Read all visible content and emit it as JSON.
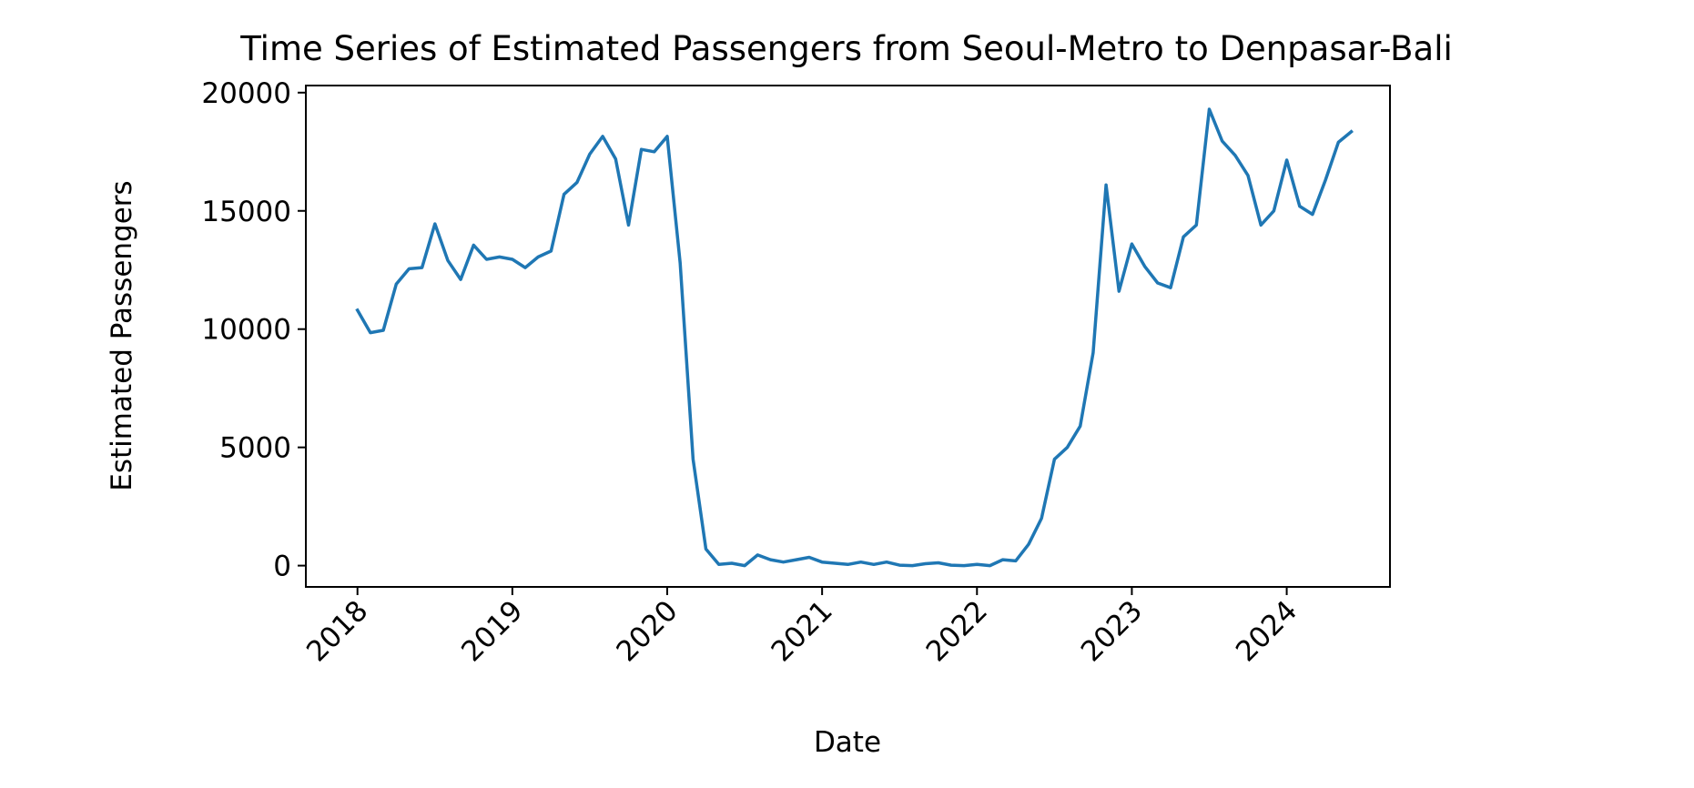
{
  "chart_data": {
    "type": "line",
    "title": "Time Series of Estimated Passengers from Seoul-Metro to Denpasar-Bali",
    "xlabel": "Date",
    "ylabel": "Estimated Passengers",
    "x_ticks": [
      "2018",
      "2019",
      "2020",
      "2021",
      "2022",
      "2023",
      "2024"
    ],
    "y_ticks": [
      "0",
      "5000",
      "10000",
      "15000",
      "20000"
    ],
    "xlim": [
      "2017-09",
      "2024-09"
    ],
    "ylim": [
      -900,
      20300
    ],
    "grid": false,
    "line_color": "#1f77b4",
    "series": [
      {
        "x": [
          "2018-01",
          "2018-02",
          "2018-03",
          "2018-04",
          "2018-05",
          "2018-06",
          "2018-07",
          "2018-08",
          "2018-09",
          "2018-10",
          "2018-11",
          "2018-12",
          "2019-01",
          "2019-02",
          "2019-03",
          "2019-04",
          "2019-05",
          "2019-06",
          "2019-07",
          "2019-08",
          "2019-09",
          "2019-10",
          "2019-11",
          "2019-12",
          "2020-01",
          "2020-02",
          "2020-03",
          "2020-04",
          "2020-05",
          "2020-06",
          "2020-07",
          "2020-08",
          "2020-09",
          "2020-10",
          "2020-11",
          "2020-12",
          "2021-01",
          "2021-02",
          "2021-03",
          "2021-04",
          "2021-05",
          "2021-06",
          "2021-07",
          "2021-08",
          "2021-09",
          "2021-10",
          "2021-11",
          "2021-12",
          "2022-01",
          "2022-02",
          "2022-03",
          "2022-04",
          "2022-05",
          "2022-06",
          "2022-07",
          "2022-08",
          "2022-09",
          "2022-10",
          "2022-11",
          "2022-12",
          "2023-01",
          "2023-02",
          "2023-03",
          "2023-04",
          "2023-05",
          "2023-06",
          "2023-07",
          "2023-08",
          "2023-09",
          "2023-10",
          "2023-11",
          "2023-12",
          "2024-01",
          "2024-02",
          "2024-03",
          "2024-04",
          "2024-05",
          "2024-06"
        ],
        "values": [
          10800,
          9850,
          9950,
          11900,
          12550,
          12600,
          14450,
          12900,
          12100,
          13550,
          12950,
          13050,
          12950,
          12600,
          13050,
          13300,
          15700,
          16200,
          17400,
          18150,
          17200,
          14400,
          17600,
          17500,
          18150,
          12800,
          4500,
          700,
          50,
          100,
          0,
          450,
          250,
          150,
          250,
          350,
          150,
          100,
          50,
          150,
          50,
          150,
          20,
          0,
          80,
          120,
          20,
          0,
          50,
          0,
          250,
          200,
          900,
          2000,
          4500,
          5000,
          5900,
          9000,
          16100,
          11600,
          13600,
          12650,
          11950,
          11750,
          13900,
          14400,
          19300,
          17950,
          17350,
          16500,
          14400,
          15000,
          17150,
          15200,
          14850,
          16300,
          17900,
          18350
        ]
      }
    ]
  }
}
